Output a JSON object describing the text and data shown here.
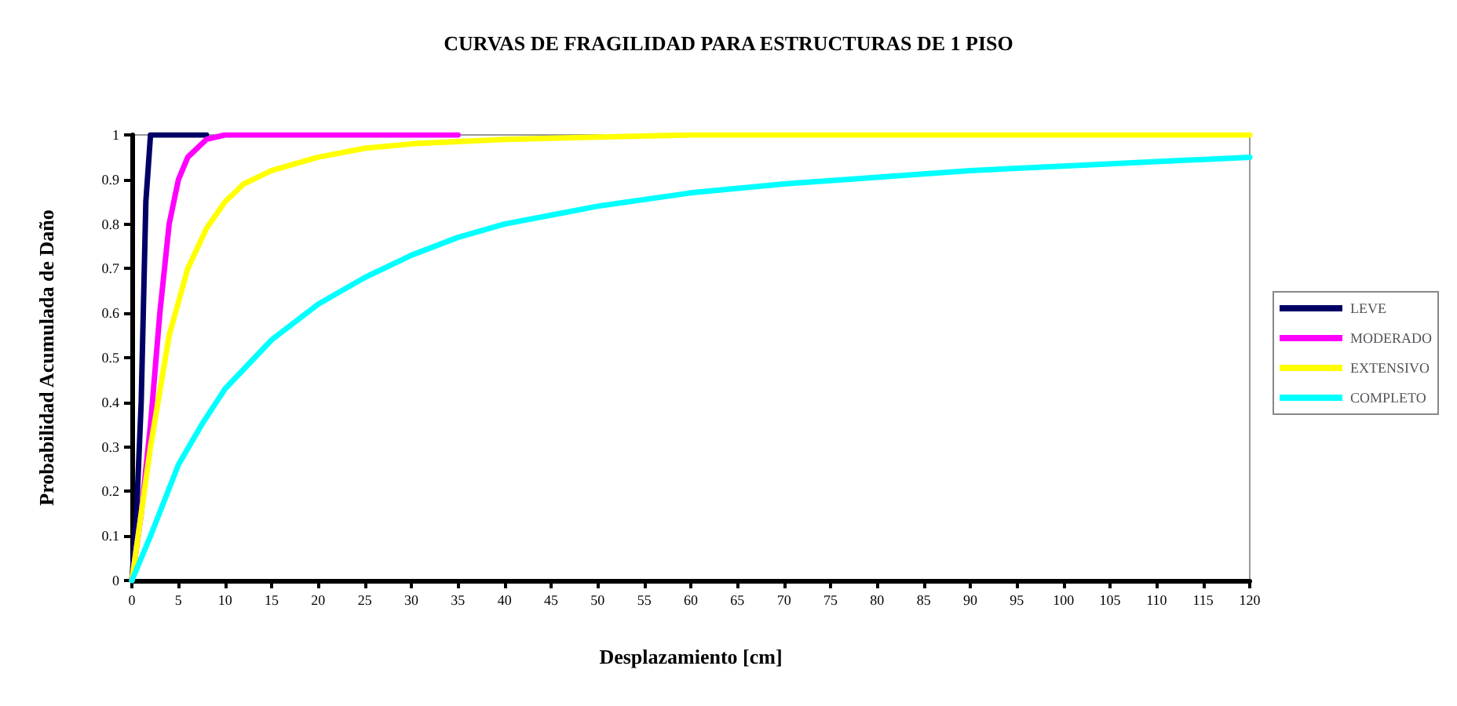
{
  "chart_data": {
    "type": "line",
    "title": "CURVAS DE FRAGILIDAD PARA ESTRUCTURAS DE 1 PISO",
    "xlabel": "Desplazamiento [cm]",
    "ylabel": "Probabilidad Acumulada de Daño",
    "xlim": [
      0,
      120
    ],
    "xticks": [
      0,
      5,
      10,
      15,
      20,
      25,
      30,
      35,
      40,
      45,
      50,
      55,
      60,
      65,
      70,
      75,
      80,
      85,
      90,
      95,
      100,
      105,
      110,
      115,
      120
    ],
    "ylim": [
      0,
      1
    ],
    "yticks": [
      0,
      0.1,
      0.2,
      0.3,
      0.4,
      0.5,
      0.6,
      0.7,
      0.8,
      0.9,
      1
    ],
    "grid": false,
    "legend": "right",
    "marker": "none",
    "line_style": "solid",
    "series": [
      {
        "name": "LEVE",
        "color": "#000066",
        "x": [
          0,
          0.5,
          1,
          1.5,
          2,
          5,
          8
        ],
        "values": [
          0,
          0.15,
          0.4,
          0.85,
          1,
          1,
          1
        ]
      },
      {
        "name": "MODERADO",
        "color": "#ff00ff",
        "x": [
          0,
          1,
          2,
          3,
          4,
          5,
          6,
          8,
          10,
          20,
          35
        ],
        "values": [
          0,
          0.15,
          0.35,
          0.6,
          0.8,
          0.9,
          0.95,
          0.99,
          1,
          1,
          1
        ]
      },
      {
        "name": "EXTENSIVO",
        "color": "#ffff00",
        "x": [
          0,
          2,
          4,
          6,
          8,
          10,
          12,
          15,
          20,
          25,
          30,
          40,
          50,
          60,
          120
        ],
        "values": [
          0,
          0.3,
          0.55,
          0.7,
          0.79,
          0.85,
          0.89,
          0.92,
          0.95,
          0.97,
          0.98,
          0.99,
          0.995,
          1,
          1
        ]
      },
      {
        "name": "COMPLETO",
        "color": "#00ffff",
        "x": [
          0,
          2,
          5,
          7.5,
          10,
          15,
          20,
          25,
          30,
          35,
          40,
          45,
          50,
          60,
          70,
          80,
          90,
          100,
          110,
          120
        ],
        "values": [
          0,
          0.1,
          0.26,
          0.35,
          0.43,
          0.54,
          0.62,
          0.68,
          0.73,
          0.77,
          0.8,
          0.82,
          0.84,
          0.87,
          0.89,
          0.905,
          0.92,
          0.93,
          0.94,
          0.95
        ]
      }
    ]
  }
}
